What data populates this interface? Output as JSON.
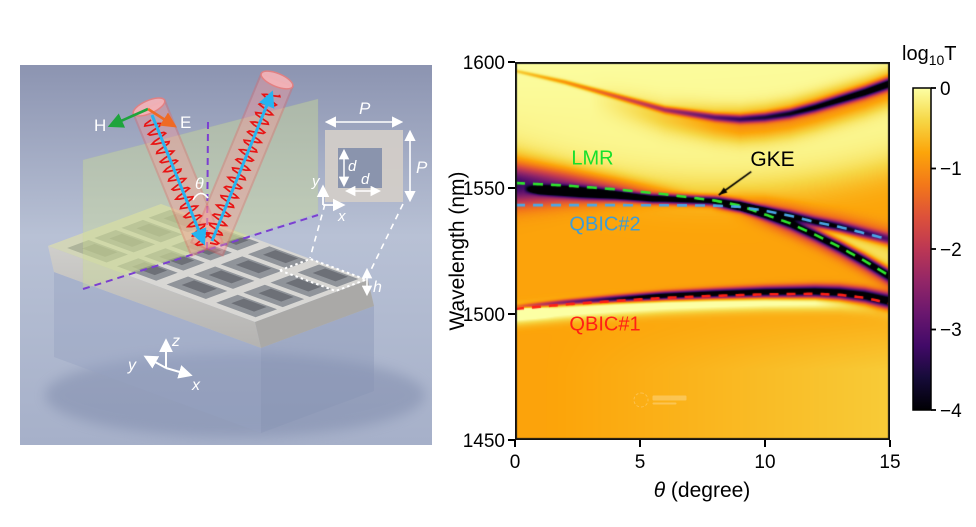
{
  "figure": {
    "background": "#ffffff",
    "left_panel": {
      "type": "3d-schematic of photonic crystal slab with square air holes",
      "labels": {
        "H": "H",
        "E": "E",
        "theta": "θ",
        "period_top": "P",
        "period_right": "P",
        "hole_d_vertical": "d",
        "hole_d_horizontal": "d",
        "inset_axis_x": "x",
        "inset_axis_y": "y",
        "slab_axis_x": "x",
        "slab_axis_y": "y",
        "slab_axis_z": "z",
        "thickness": "h"
      },
      "colors": {
        "beam": "#f08a8a",
        "wave": "#e81414",
        "k_arrow": "#25b4f0",
        "H_arrow": "#1ea43c",
        "E_arrow": "#ef6a25",
        "dashed_purple": "#7b3fd1",
        "incidence_plane": "#cede96",
        "slab": "#d7d6d3",
        "bg_top": "#8c94b1",
        "bg_mid": "#b8c1d5",
        "bg_bottom": "#a6b0c9"
      }
    }
  },
  "chart_data": {
    "type": "heatmap",
    "xlabel_symbol": "θ",
    "xlabel_rest": " (degree)",
    "ylabel": "Wavelength (nm)",
    "xlim": [
      0,
      15
    ],
    "ylim": [
      1450,
      1600
    ],
    "xtick_values": [
      0,
      5,
      10,
      15
    ],
    "xtick_labels": [
      "0",
      "5",
      "10",
      "15"
    ],
    "ytick_values": [
      1600,
      1550,
      1500,
      1450
    ],
    "ytick_labels": [
      "1600",
      "1550",
      "1500",
      "1450"
    ],
    "grid": false,
    "colorbar": {
      "title_base": "log",
      "title_sub": "10",
      "title_var": "T",
      "range": [
        -4,
        0
      ],
      "tick_values": [
        0,
        -1,
        -2,
        -3,
        -4
      ],
      "tick_labels": [
        "0",
        "−1",
        "−2",
        "−3",
        "−4"
      ],
      "colormap": "inferno"
    },
    "annotations": [
      {
        "id": "lmr",
        "text": "LMR",
        "color": "#17e02c",
        "x": 3.1,
        "y": 1561.5
      },
      {
        "id": "qbic2",
        "text": "QBIC#2",
        "color": "#3e9cd6",
        "x": 3.6,
        "y": 1535.5
      },
      {
        "id": "qbic1",
        "text": "QBIC#1",
        "color": "#ff2015",
        "x": 3.6,
        "y": 1495.5
      },
      {
        "id": "gke",
        "text": "GKE",
        "color": "#000000",
        "x": 10.3,
        "y": 1561,
        "arrow_from": {
          "x": 9.45,
          "y": 1556.5
        },
        "arrow_to": {
          "x": 8.15,
          "y": 1547.2
        }
      }
    ],
    "curves": [
      {
        "name": "LMR",
        "style": "dashed",
        "color": "#2ee62e",
        "points": [
          [
            0,
            1552
          ],
          [
            2,
            1551
          ],
          [
            4,
            1549.5
          ],
          [
            6,
            1547.5
          ],
          [
            8,
            1545
          ],
          [
            9,
            1543
          ],
          [
            10,
            1539.5
          ],
          [
            11,
            1536
          ],
          [
            12,
            1531.5
          ],
          [
            13,
            1526.5
          ],
          [
            14,
            1521
          ],
          [
            15,
            1515
          ]
        ]
      },
      {
        "name": "QBIC#2",
        "style": "dashed",
        "color": "#4aa8e8",
        "points": [
          [
            0,
            1543.2
          ],
          [
            4,
            1543.2
          ],
          [
            7,
            1543.1
          ],
          [
            8,
            1543
          ],
          [
            9,
            1542.5
          ],
          [
            10,
            1541
          ],
          [
            11,
            1539
          ],
          [
            12,
            1536.5
          ],
          [
            13,
            1534.5
          ],
          [
            14,
            1532
          ],
          [
            15,
            1529.5
          ]
        ]
      },
      {
        "name": "QBIC#1",
        "style": "dashed",
        "color": "#ff2015",
        "points": [
          [
            0,
            1502
          ],
          [
            2,
            1503.8
          ],
          [
            4,
            1505.2
          ],
          [
            6,
            1506.4
          ],
          [
            8,
            1507.2
          ],
          [
            10,
            1507.8
          ],
          [
            12,
            1508
          ],
          [
            13,
            1507.6
          ],
          [
            14,
            1506.4
          ],
          [
            15,
            1504.2
          ]
        ]
      },
      {
        "name": "upper-mode",
        "style": "none",
        "color": null,
        "points": [
          [
            0,
            1596.5
          ],
          [
            2,
            1592
          ],
          [
            4,
            1586.5
          ],
          [
            6,
            1581
          ],
          [
            8,
            1578
          ],
          [
            9,
            1577.3
          ],
          [
            10,
            1578
          ],
          [
            11,
            1579.5
          ],
          [
            12,
            1582
          ],
          [
            13,
            1585
          ],
          [
            14,
            1588
          ],
          [
            15,
            1591.5
          ]
        ]
      }
    ],
    "watermark": {
      "present": true
    }
  }
}
